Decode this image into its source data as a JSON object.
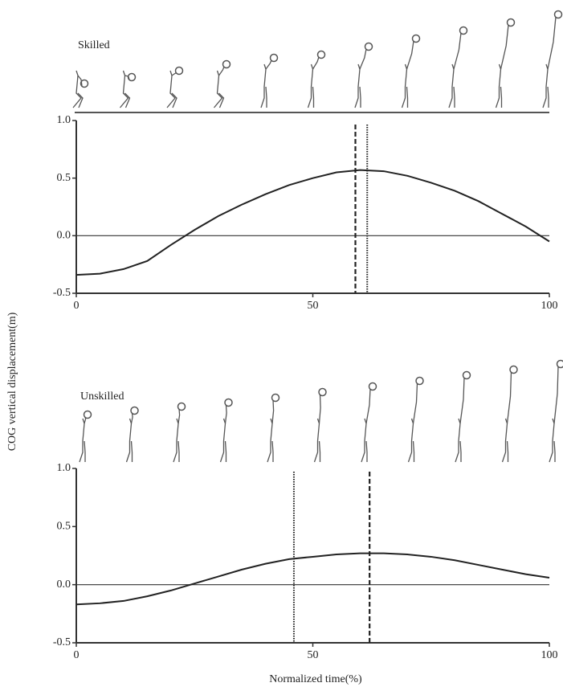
{
  "chart_data": [
    {
      "type": "line",
      "title": "Skilled",
      "ylabel": "COG vertical displacement(m)",
      "x": [
        0,
        5,
        10,
        15,
        20,
        25,
        30,
        35,
        40,
        45,
        50,
        55,
        60,
        65,
        70,
        75,
        80,
        85,
        90,
        95,
        100
      ],
      "values": [
        -0.34,
        -0.33,
        -0.29,
        -0.22,
        -0.08,
        0.05,
        0.17,
        0.27,
        0.36,
        0.44,
        0.5,
        0.55,
        0.57,
        0.56,
        0.52,
        0.46,
        0.39,
        0.3,
        0.19,
        0.08,
        -0.05
      ],
      "color": "#222",
      "xlim": [
        0,
        100
      ],
      "ylim": [
        -0.5,
        1.0
      ],
      "xticks": [
        0,
        50,
        100
      ],
      "yticks": [
        {
          "value": 1,
          "label": "1.0"
        },
        0.5,
        {
          "value": 0,
          "label": "0.0"
        },
        -0.5
      ],
      "zero_line": true,
      "vlines": [
        {
          "x": 59,
          "style": "dashed"
        },
        {
          "x": 61.5,
          "style": "dotted"
        }
      ]
    },
    {
      "type": "line",
      "title": "Unskilled",
      "xlabel": "Normalized time(%)",
      "x": [
        0,
        5,
        10,
        15,
        20,
        25,
        30,
        35,
        40,
        45,
        50,
        55,
        60,
        65,
        70,
        75,
        80,
        85,
        90,
        95,
        100
      ],
      "values": [
        -0.17,
        -0.16,
        -0.14,
        -0.1,
        -0.05,
        0.01,
        0.07,
        0.13,
        0.18,
        0.22,
        0.24,
        0.26,
        0.27,
        0.27,
        0.26,
        0.24,
        0.21,
        0.17,
        0.13,
        0.09,
        0.06
      ],
      "color": "#222",
      "xlim": [
        0,
        100
      ],
      "ylim": [
        -0.5,
        1.0
      ],
      "xticks": [
        0,
        50,
        100
      ],
      "yticks": [
        {
          "value": 1,
          "label": "1.0"
        },
        0.5,
        {
          "value": 0,
          "label": "0.0"
        },
        -0.5
      ],
      "zero_line": true,
      "vlines": [
        {
          "x": 46,
          "style": "dotted"
        },
        {
          "x": 62,
          "style": "dashed"
        }
      ]
    }
  ]
}
